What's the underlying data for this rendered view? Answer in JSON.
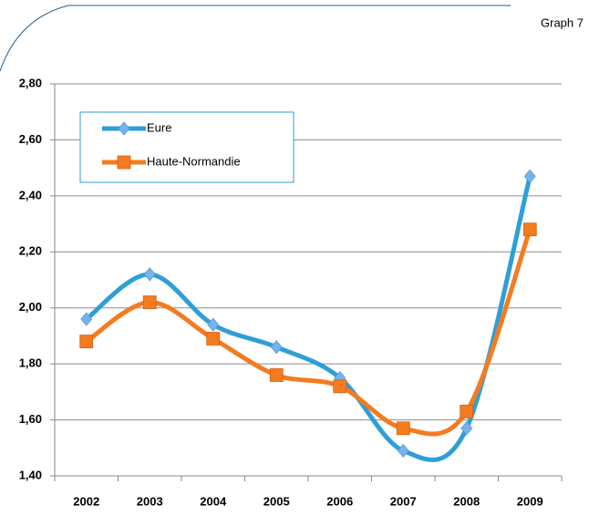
{
  "chart_data": {
    "type": "line",
    "subtitle": "Graph 7",
    "categories": [
      "2002",
      "2003",
      "2004",
      "2005",
      "2006",
      "2007",
      "2008",
      "2009"
    ],
    "series": [
      {
        "name": "Eure",
        "color": "#2e9fd6",
        "marker_color": "#74b4ec",
        "marker": "diamond",
        "values": [
          1.96,
          2.12,
          1.94,
          1.86,
          1.75,
          1.49,
          1.57,
          2.47
        ]
      },
      {
        "name": "Haute-Normandie",
        "color": "#f47b20",
        "marker_color": "#f47b20",
        "marker": "square",
        "values": [
          1.88,
          2.02,
          1.89,
          1.76,
          1.72,
          1.57,
          1.63,
          2.28
        ]
      }
    ],
    "ylim": [
      1.4,
      2.8
    ],
    "yticks": [
      {
        "value": 1.4,
        "label": "1,40"
      },
      {
        "value": 1.6,
        "label": "1,60"
      },
      {
        "value": 1.8,
        "label": "1,80"
      },
      {
        "value": 2.0,
        "label": "2,00"
      },
      {
        "value": 2.2,
        "label": "2,20"
      },
      {
        "value": 2.4,
        "label": "2,40"
      },
      {
        "value": 2.6,
        "label": "2,60"
      },
      {
        "value": 2.8,
        "label": "2,80"
      }
    ],
    "grid": true,
    "smooth": true,
    "legend": "upper left"
  }
}
